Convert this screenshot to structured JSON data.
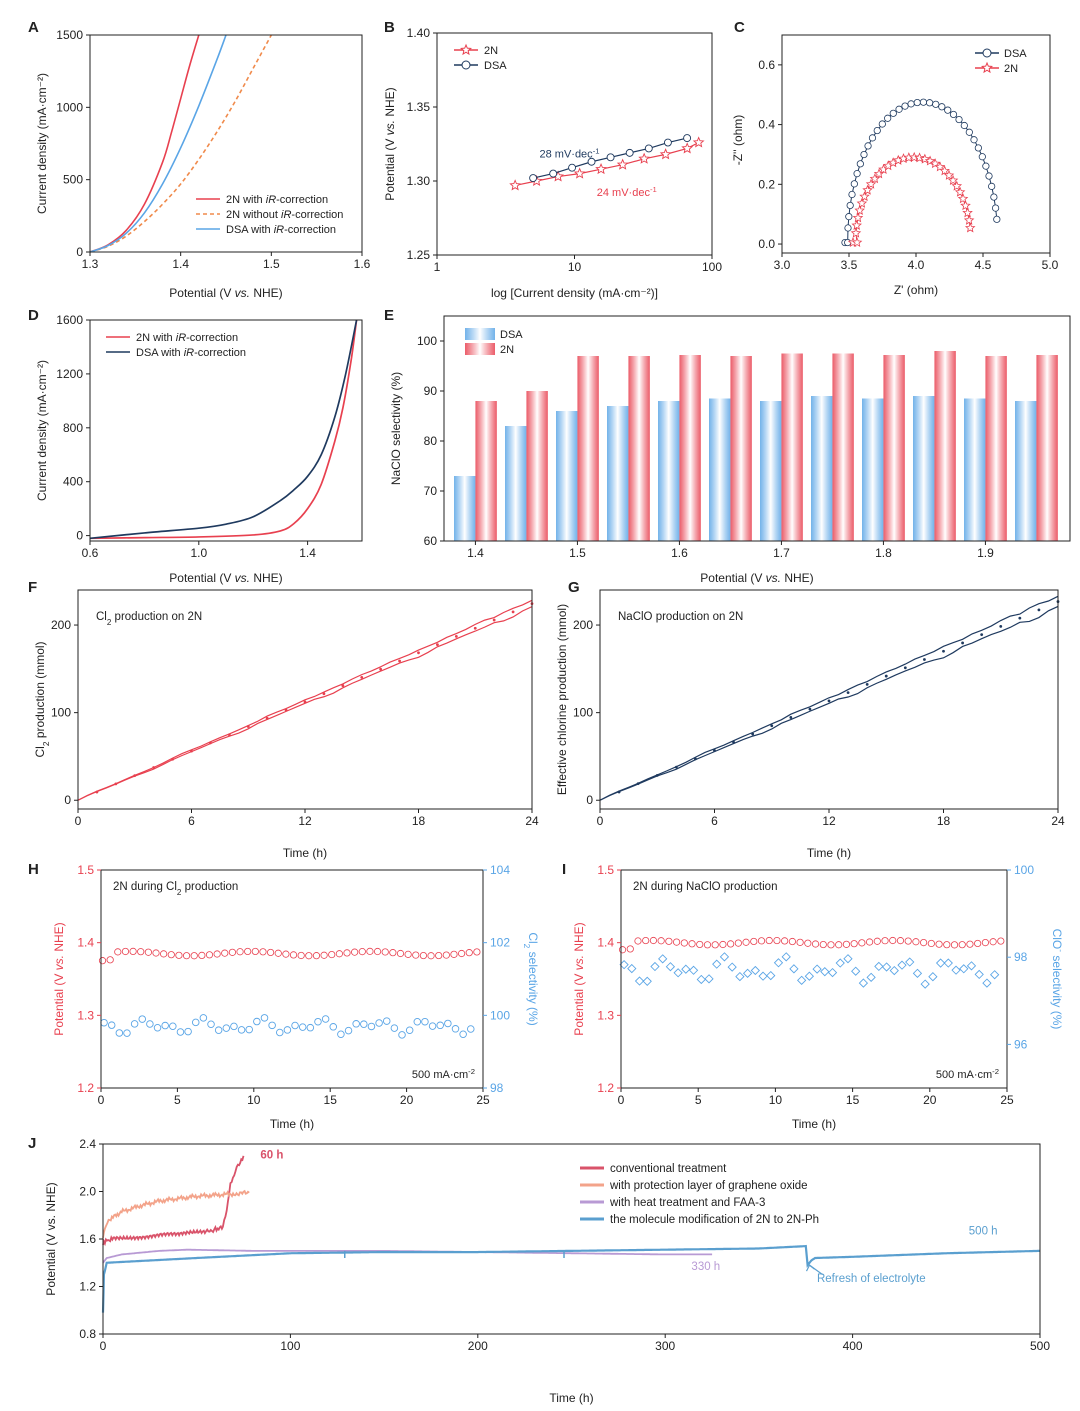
{
  "colors": {
    "red": "#e8404f",
    "orange": "#f08a4b",
    "blue": "#5aa5e6",
    "navy": "#1f3a5f",
    "axis": "#222222",
    "j_conventional": "#d9536a",
    "j_graphene": "#f3a38a",
    "j_heat": "#b89ad4",
    "j_molecule": "#5a9fcf"
  },
  "chart_data": [
    {
      "id": "A",
      "type": "line",
      "panel_label": "A",
      "xlabel_pre": "Potential (V ",
      "xlabel_em": "vs.",
      "xlabel_post": " NHE)",
      "ylabel": "Current density (mA·cm⁻²)",
      "xlim": [
        1.3,
        1.6
      ],
      "ylim": [
        0,
        1500
      ],
      "xticks": [
        1.3,
        1.4,
        1.5,
        1.6
      ],
      "xtick_labels": [
        "1.3",
        "1.4",
        "1.5",
        "1.6"
      ],
      "yticks": [
        0,
        500,
        1000,
        1500
      ],
      "ytick_labels": [
        "0",
        "500",
        "1000",
        "1500"
      ],
      "series": [
        {
          "name_pre": "2N with ",
          "name_em": "iR",
          "name_post": "-correction",
          "color": "red",
          "dash": false,
          "x": [
            1.3,
            1.32,
            1.34,
            1.36,
            1.38,
            1.39,
            1.4,
            1.41,
            1.42
          ],
          "y": [
            0,
            50,
            150,
            330,
            620,
            830,
            1060,
            1290,
            1500
          ]
        },
        {
          "name_pre": "2N without ",
          "name_em": "iR",
          "name_post": "-correction",
          "color": "orange",
          "dash": true,
          "x": [
            1.3,
            1.32,
            1.34,
            1.36,
            1.38,
            1.4,
            1.42,
            1.44,
            1.46,
            1.48,
            1.5
          ],
          "y": [
            0,
            40,
            110,
            210,
            330,
            470,
            640,
            830,
            1040,
            1270,
            1500
          ]
        },
        {
          "name_pre": "DSA with ",
          "name_em": "iR",
          "name_post": "-correction",
          "color": "blue",
          "dash": false,
          "x": [
            1.3,
            1.32,
            1.34,
            1.36,
            1.38,
            1.4,
            1.42,
            1.44,
            1.45
          ],
          "y": [
            0,
            45,
            130,
            270,
            470,
            720,
            1010,
            1330,
            1500
          ]
        }
      ]
    },
    {
      "id": "B",
      "type": "scatter",
      "panel_label": "B",
      "xlabel": "log [Current density (mA·cm⁻²)]",
      "ylabel_pre": "Potential (V ",
      "ylabel_em": "vs.",
      "ylabel_post": " NHE)",
      "xscale": "log",
      "xlim": [
        1,
        100
      ],
      "ylim": [
        1.25,
        1.4
      ],
      "xticks": [
        1,
        10,
        100
      ],
      "xtick_labels": [
        "1",
        "10",
        "100"
      ],
      "yticks": [
        1.25,
        1.3,
        1.35,
        1.4
      ],
      "ytick_labels": [
        "1.25",
        "1.30",
        "1.35",
        "1.40"
      ],
      "series": [
        {
          "name": "2N",
          "color": "red",
          "marker": "star",
          "x": [
            3.7,
            5.3,
            7.6,
            10.9,
            15.6,
            22.4,
            32.1,
            46.0,
            66.0,
            80.0
          ],
          "y": [
            1.297,
            1.3,
            1.303,
            1.305,
            1.308,
            1.311,
            1.315,
            1.318,
            1.322,
            1.326
          ]
        },
        {
          "name": "DSA",
          "color": "navy",
          "marker": "circle",
          "x": [
            5.0,
            7.0,
            9.6,
            13.3,
            18.3,
            25.2,
            34.7,
            47.8,
            65.9
          ],
          "y": [
            1.302,
            1.305,
            1.309,
            1.313,
            1.316,
            1.319,
            1.322,
            1.326,
            1.329
          ]
        }
      ],
      "annotations": [
        {
          "text_pre": "28 mV·dec",
          "text_sup": "-1",
          "color": "navy",
          "x": 9.2,
          "y": 1.316
        },
        {
          "text_pre": "24 mV·dec",
          "text_sup": "-1",
          "color": "red",
          "x": 24,
          "y": 1.29
        }
      ]
    },
    {
      "id": "C",
      "type": "scatter",
      "panel_label": "C",
      "xlabel": "Z' (ohm)",
      "ylabel": "-Z'' (ohm)",
      "xlim": [
        3.0,
        5.0
      ],
      "ylim": [
        -0.03,
        0.7
      ],
      "xticks": [
        3.0,
        3.5,
        4.0,
        4.5,
        5.0
      ],
      "xtick_labels": [
        "3.0",
        "3.5",
        "4.0",
        "4.5",
        "5.0"
      ],
      "yticks": [
        0.0,
        0.2,
        0.4,
        0.6
      ],
      "ytick_labels": [
        "0.0",
        "0.2",
        "0.4",
        "0.6"
      ],
      "series": [
        {
          "name": "DSA",
          "color": "navy",
          "marker": "circle",
          "center": 4.05,
          "radius": 0.56,
          "height": 0.465,
          "tail": [
            3.47,
            3.49
          ],
          "points": 36
        },
        {
          "name": "2N",
          "color": "red",
          "marker": "star",
          "center": 3.98,
          "radius": 0.43,
          "height": 0.28,
          "tail": [
            3.53,
            3.56
          ],
          "points": 32
        }
      ]
    },
    {
      "id": "D",
      "type": "line",
      "panel_label": "D",
      "xlabel_pre": "Potential (V ",
      "xlabel_em": "vs.",
      "xlabel_post": " NHE)",
      "ylabel": "Current density (mA·cm⁻²)",
      "xlim": [
        0.6,
        1.6
      ],
      "ylim": [
        -40,
        1600
      ],
      "xticks": [
        0.6,
        1.0,
        1.4
      ],
      "xtick_labels": [
        "0.6",
        "1.0",
        "1.4"
      ],
      "yticks": [
        0,
        400,
        800,
        1200,
        1600
      ],
      "ytick_labels": [
        "0",
        "400",
        "800",
        "1200",
        "1600"
      ],
      "series": [
        {
          "name_pre": "2N with ",
          "name_em": "iR",
          "name_post": "-correction",
          "color": "red",
          "x": [
            0.6,
            0.8,
            1.0,
            1.2,
            1.3,
            1.35,
            1.4,
            1.45,
            1.5,
            1.53,
            1.56,
            1.58
          ],
          "y": [
            -20,
            -15,
            -10,
            5,
            35,
            90,
            200,
            380,
            700,
            950,
            1300,
            1600
          ]
        },
        {
          "name_pre": "DSA with ",
          "name_em": "iR",
          "name_post": "-correction",
          "color": "navy",
          "x": [
            0.6,
            0.8,
            1.0,
            1.1,
            1.2,
            1.3,
            1.35,
            1.4,
            1.45,
            1.5,
            1.54,
            1.58
          ],
          "y": [
            -20,
            20,
            55,
            85,
            140,
            260,
            340,
            440,
            600,
            880,
            1200,
            1600
          ]
        }
      ]
    },
    {
      "id": "E",
      "type": "bar",
      "panel_label": "E",
      "xlabel_pre": "Potential (V ",
      "xlabel_em": "vs.",
      "xlabel_post": " NHE)",
      "ylabel": "NaClO selectivity (%)",
      "ylim": [
        60,
        105
      ],
      "yticks": [
        60,
        70,
        80,
        90,
        100
      ],
      "ytick_labels": [
        "60",
        "70",
        "80",
        "90",
        "100"
      ],
      "categories": [
        "1.40",
        "1.45",
        "1.50",
        "1.55",
        "1.60",
        "1.65",
        "1.70",
        "1.75",
        "1.80",
        "1.85",
        "1.90",
        "1.95"
      ],
      "xtick_labels": [
        "1.4",
        "1.5",
        "1.6",
        "1.7",
        "1.8",
        "1.9"
      ],
      "series": [
        {
          "name": "DSA",
          "color": "blue",
          "values": [
            73,
            83,
            86,
            87,
            88,
            88.5,
            88,
            89,
            88.5,
            89,
            88.5,
            88
          ]
        },
        {
          "name": "2N",
          "color": "red",
          "values": [
            88,
            90,
            97,
            97,
            97.2,
            97,
            97.5,
            97.5,
            97.2,
            98,
            97,
            97.2
          ]
        }
      ]
    },
    {
      "id": "F",
      "type": "line",
      "panel_label": "F",
      "title_pre": "Cl",
      "title_sub": "2",
      "title_post": " production on 2N",
      "xlabel": "Time (h)",
      "ylabel_pre": "Cl",
      "ylabel_sub": "2",
      "ylabel_post": " production (mmol)",
      "xlim": [
        0,
        24
      ],
      "ylim": [
        -10,
        240
      ],
      "xticks": [
        0,
        6,
        12,
        18,
        24
      ],
      "xtick_labels": [
        "0",
        "6",
        "12",
        "18",
        "24"
      ],
      "yticks": [
        0,
        100,
        200
      ],
      "ytick_labels": [
        "0",
        "100",
        "200"
      ],
      "color": "red",
      "slope": 9.35,
      "band": 5
    },
    {
      "id": "G",
      "type": "line",
      "panel_label": "G",
      "title": "NaClO production on 2N",
      "xlabel": "Time (h)",
      "ylabel": "Effective chlorine production (mmol)",
      "xlim": [
        0,
        24
      ],
      "ylim": [
        -10,
        240
      ],
      "xticks": [
        0,
        6,
        12,
        18,
        24
      ],
      "xtick_labels": [
        "0",
        "6",
        "12",
        "18",
        "24"
      ],
      "yticks": [
        0,
        100,
        200
      ],
      "ytick_labels": [
        "0",
        "100",
        "200"
      ],
      "color": "navy",
      "slope": 9.45,
      "band": 8
    },
    {
      "id": "H",
      "type": "scatter",
      "panel_label": "H",
      "title_pre": "2N during Cl",
      "title_sub": "2",
      "title_post": " production",
      "current_label_pre": "500 mA·cm",
      "current_label_sup": "-2",
      "xlabel": "Time (h)",
      "ylabel_pre": "Potential (V ",
      "ylabel_em": "vs.",
      "ylabel_post": " NHE)",
      "y2label_pre": "Cl",
      "y2label_sub": "2",
      "y2label_post": " selectivity (%)",
      "xlim": [
        0,
        25
      ],
      "ylim": [
        1.2,
        1.5
      ],
      "y2lim": [
        98,
        104
      ],
      "xticks": [
        0,
        5,
        10,
        15,
        20,
        25
      ],
      "xtick_labels": [
        "0",
        "5",
        "10",
        "15",
        "20",
        "25"
      ],
      "yticks": [
        1.2,
        1.3,
        1.4,
        1.5
      ],
      "ytick_labels": [
        "1.2",
        "1.3",
        "1.4",
        "1.5"
      ],
      "y2ticks": [
        98,
        100,
        102,
        104
      ],
      "y2tick_labels": [
        "98",
        "100",
        "102",
        "104"
      ],
      "potential_level": 1.385,
      "selectivity_level": 99.7,
      "selectivity_jitter": 0.15
    },
    {
      "id": "I",
      "type": "scatter",
      "panel_label": "I",
      "title": "2N during NaClO production",
      "current_label_pre": "500 mA·cm",
      "current_label_sup": "-2",
      "xlabel": "Time (h)",
      "ylabel_pre": "Potential (V ",
      "ylabel_em": "vs.",
      "ylabel_post": " NHE)",
      "y2label_pre": "ClO",
      "y2label_sup": "-",
      "y2label_post": " selectivity (%)",
      "xlim": [
        0,
        25
      ],
      "ylim": [
        1.2,
        1.5
      ],
      "y2lim": [
        95,
        100
      ],
      "xticks": [
        0,
        5,
        10,
        15,
        20,
        25
      ],
      "xtick_labels": [
        "0",
        "5",
        "10",
        "15",
        "20",
        "25"
      ],
      "yticks": [
        1.2,
        1.3,
        1.4,
        1.5
      ],
      "ytick_labels": [
        "1.2",
        "1.3",
        "1.4",
        "1.5"
      ],
      "y2ticks": [
        96,
        98,
        100
      ],
      "y2tick_labels": [
        "96",
        "98",
        "100"
      ],
      "potential_level": 1.4,
      "selectivity_level": 97.7,
      "selectivity_jitter": 0.2
    },
    {
      "id": "J",
      "type": "line",
      "panel_label": "J",
      "xlabel": "Time (h)",
      "ylabel": "Potential (V vs. NHE)",
      "xlim": [
        0,
        500
      ],
      "ylim": [
        0.8,
        2.4
      ],
      "xticks": [
        0,
        100,
        200,
        300,
        400,
        500
      ],
      "xtick_labels": [
        "0",
        "100",
        "200",
        "300",
        "400",
        "500"
      ],
      "yticks": [
        0.8,
        1.2,
        1.6,
        2.0,
        2.4
      ],
      "ytick_labels": [
        "0.8",
        "1.2",
        "1.6",
        "2.0",
        "2.4"
      ],
      "series": [
        {
          "name": "conventional treatment",
          "color": "j_conventional",
          "x": [
            0,
            1,
            5,
            20,
            40,
            55,
            60,
            64,
            66,
            68,
            70,
            72,
            75
          ],
          "y": [
            1.55,
            1.58,
            1.6,
            1.62,
            1.64,
            1.66,
            1.68,
            1.7,
            1.85,
            2.05,
            2.15,
            2.22,
            2.3
          ]
        },
        {
          "name": "with protection layer of graphene oxide",
          "color": "j_graphene",
          "x": [
            0,
            1,
            3,
            10,
            20,
            30,
            40,
            50,
            60,
            70,
            78
          ],
          "y": [
            1.6,
            1.7,
            1.76,
            1.83,
            1.88,
            1.92,
            1.94,
            1.96,
            1.97,
            1.98,
            1.99
          ]
        },
        {
          "name": "with heat treatment and FAA-3",
          "color": "j_heat",
          "x": [
            0,
            2,
            10,
            30,
            45,
            80,
            150,
            200,
            250,
            300,
            325
          ],
          "y": [
            1.4,
            1.44,
            1.47,
            1.5,
            1.51,
            1.5,
            1.5,
            1.49,
            1.48,
            1.47,
            1.47
          ]
        },
        {
          "name": "the molecule modification of 2N to 2N-Ph",
          "color": "j_molecule",
          "x": [
            0,
            0.5,
            2,
            50,
            100,
            150,
            200,
            250,
            300,
            350,
            375,
            376,
            378,
            380,
            400,
            450,
            500
          ],
          "y": [
            0.98,
            1.3,
            1.4,
            1.44,
            1.48,
            1.49,
            1.49,
            1.5,
            1.51,
            1.52,
            1.54,
            1.38,
            1.42,
            1.44,
            1.45,
            1.48,
            1.5
          ]
        }
      ],
      "annotations": [
        {
          "text": "60 h",
          "color": "j_conventional",
          "x": 84,
          "y": 2.28
        },
        {
          "text": "330 h",
          "color": "j_heat",
          "x": 314,
          "y": 1.34
        },
        {
          "text": "500 h",
          "color": "j_molecule",
          "x": 462,
          "y": 1.64
        },
        {
          "text": "Refresh of electrolyte",
          "color": "j_molecule",
          "x": 381,
          "y": 1.24
        }
      ]
    }
  ]
}
